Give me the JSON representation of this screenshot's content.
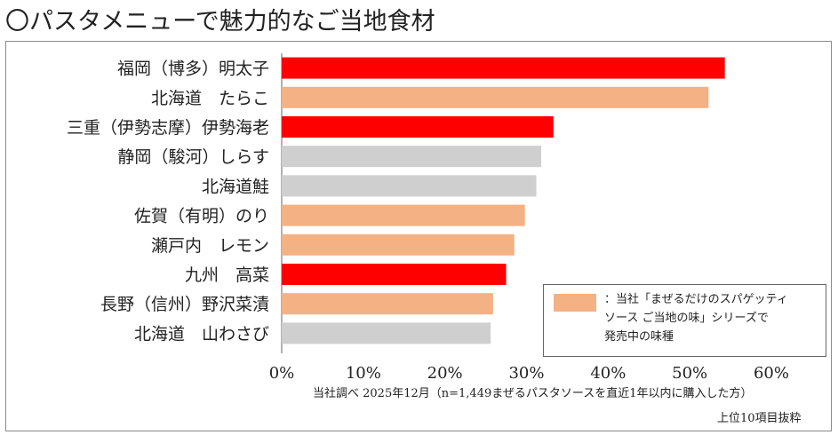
{
  "title": "〇パスタメニューで魅力的なご当地食材",
  "colors": {
    "red": "#ff0000",
    "orange": "#f4b183",
    "gray": "#cfcfcf"
  },
  "chart_data": {
    "type": "bar",
    "orientation": "horizontal",
    "title": "〇パスタメニューで魅力的なご当地食材",
    "categories": [
      "福岡（博多）明太子",
      "北海道　たらこ",
      "三重（伊勢志摩）伊勢海老",
      "静岡（駿河）しらす",
      "北海道鮭",
      "佐賀（有明）のり",
      "瀬戸内　レモン",
      "九州　高菜",
      "長野（信州）野沢菜漬",
      "北海道　山わさび"
    ],
    "values": [
      54.3,
      52.3,
      33.3,
      31.8,
      31.2,
      29.8,
      28.5,
      27.5,
      25.9,
      25.6
    ],
    "bar_colors": [
      "red",
      "orange",
      "red",
      "gray",
      "gray",
      "orange",
      "orange",
      "red",
      "orange",
      "gray"
    ],
    "xlim": [
      0,
      60
    ],
    "x_ticks": [
      "0%",
      "10%",
      "20%",
      "30%",
      "40%",
      "50%",
      "60%"
    ],
    "xlabel": "",
    "ylabel": "",
    "grid": false,
    "legend_position": "bottom-right"
  },
  "legend": {
    "text": "：当社「まぜるだけのスパゲッティ\nソース ご当地の味」シリーズで\n発売中の味種"
  },
  "source_note": "当社調べ 2025年12月（n=1,449まぜるパスタソースを直近1年以内に購入した方）",
  "top_note": "上位10項目抜粋"
}
